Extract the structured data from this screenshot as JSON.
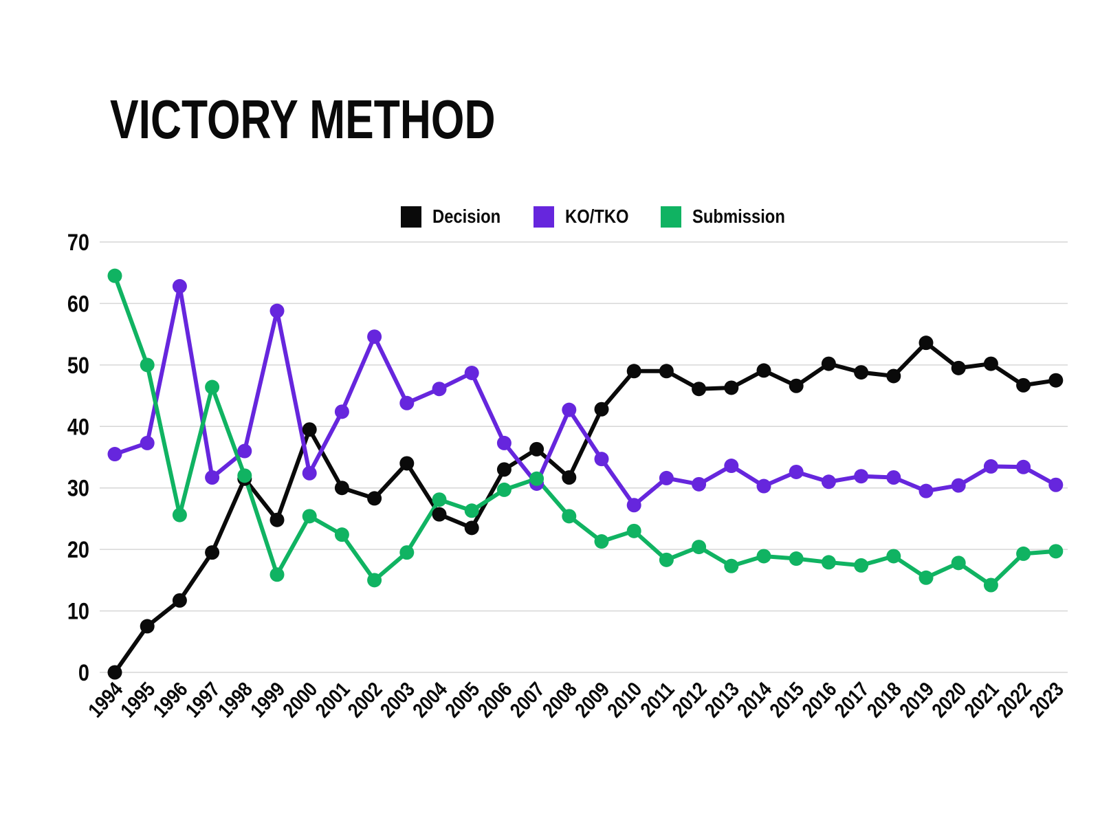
{
  "title": "VICTORY METHOD",
  "chart_data": {
    "type": "line",
    "title": "VICTORY METHOD",
    "xlabel": "",
    "ylabel": "",
    "ylim": [
      0,
      70
    ],
    "yticks": [
      0,
      10,
      20,
      30,
      40,
      50,
      60,
      70
    ],
    "grid": true,
    "legend_position": "top-center",
    "categories": [
      "1994",
      "1995",
      "1996",
      "1997",
      "1998",
      "1999",
      "2000",
      "2001",
      "2002",
      "2003",
      "2004",
      "2005",
      "2006",
      "2007",
      "2008",
      "2009",
      "2010",
      "2011",
      "2012",
      "2013",
      "2014",
      "2015",
      "2016",
      "2017",
      "2018",
      "2019",
      "2020",
      "2021",
      "2022",
      "2023"
    ],
    "series": [
      {
        "name": "Decision",
        "color": "#0a0a0a",
        "values": [
          0,
          7.5,
          11.7,
          19.5,
          31.5,
          24.8,
          39.5,
          30.0,
          28.3,
          34.0,
          25.7,
          23.5,
          33.0,
          36.3,
          31.7,
          42.8,
          49.0,
          49.0,
          46.1,
          46.3,
          49.1,
          46.6,
          50.2,
          48.8,
          48.2,
          53.6,
          49.5,
          50.2,
          46.7,
          47.5
        ]
      },
      {
        "name": "KO/TKO",
        "color": "#6626dd",
        "values": [
          35.5,
          37.3,
          62.8,
          31.7,
          36.0,
          58.8,
          32.4,
          42.4,
          54.6,
          43.8,
          46.1,
          48.7,
          37.3,
          30.7,
          42.7,
          34.7,
          27.2,
          31.6,
          30.6,
          33.6,
          30.3,
          32.6,
          31.0,
          31.9,
          31.7,
          29.5,
          30.4,
          33.5,
          33.4,
          30.5
        ]
      },
      {
        "name": "Submission",
        "color": "#10b362",
        "values": [
          64.5,
          50.0,
          25.6,
          46.4,
          32.0,
          15.9,
          25.4,
          22.4,
          15.0,
          19.5,
          28.1,
          26.3,
          29.7,
          31.5,
          25.4,
          21.3,
          23.0,
          18.3,
          20.4,
          17.3,
          18.9,
          18.5,
          17.9,
          17.4,
          18.9,
          15.4,
          17.8,
          14.2,
          19.3,
          19.7
        ]
      }
    ],
    "gridline_color": "#d6d6d6",
    "background_color": "#ffffff"
  }
}
